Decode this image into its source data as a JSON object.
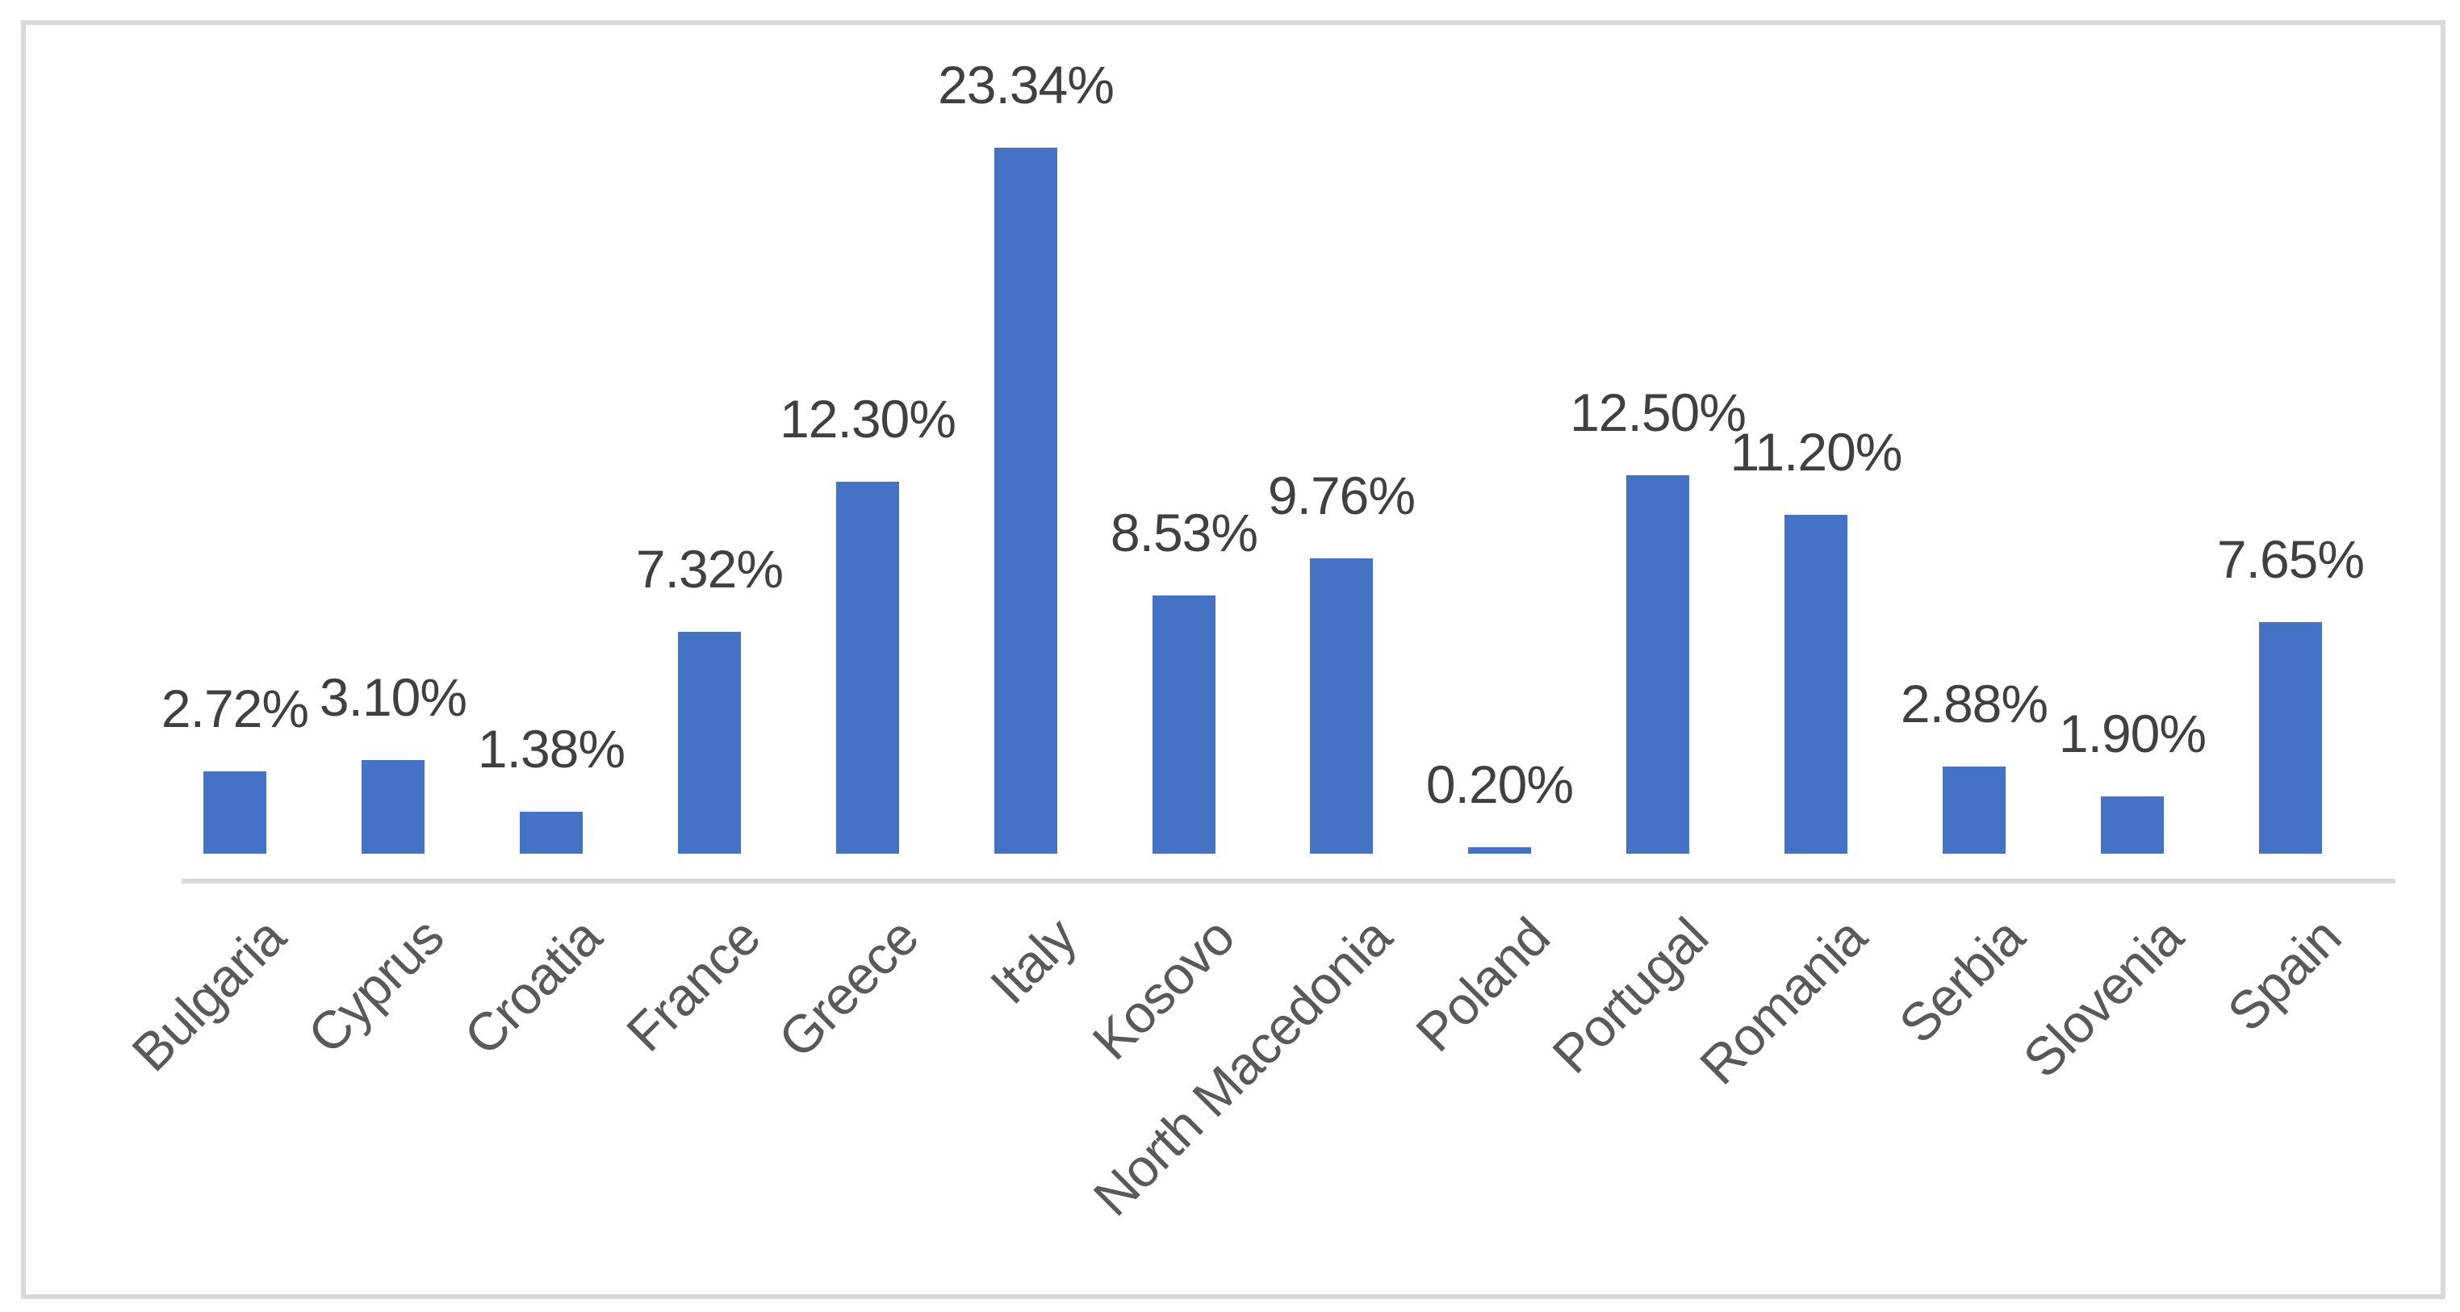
{
  "chart_data": {
    "type": "bar",
    "categories": [
      "Bulgaria",
      "Cyprus",
      "Croatia",
      "France",
      "Greece",
      "Italy",
      "Kosovo",
      "North Macedonia",
      "Poland",
      "Portugal",
      "Romania",
      "Serbia",
      "Slovenia",
      "Spain"
    ],
    "values": [
      2.72,
      3.1,
      1.38,
      7.32,
      12.3,
      23.34,
      8.53,
      9.76,
      0.2,
      12.5,
      11.2,
      2.88,
      1.9,
      7.65
    ],
    "labels": [
      "2.72%",
      "3.10%",
      "1.38%",
      "7.32%",
      "12.30%",
      "23.34%",
      "8.53%",
      "9.76%",
      "0.20%",
      "12.50%",
      "11.20%",
      "2.88%",
      "1.90%",
      "7.65%"
    ],
    "title": "",
    "xlabel": "",
    "ylabel": "",
    "ylim": [
      0,
      25
    ],
    "grid": false,
    "legend": false,
    "data_label_position": "outside-end",
    "tick_label_rotation_deg": 45,
    "colors": {
      "bar": "#4472C5",
      "axis_line": "#D9D9D9",
      "frame_border": "#D9D9D9",
      "data_label": "#404040",
      "tick_label": "#595959",
      "background": "#FFFFFF"
    }
  }
}
